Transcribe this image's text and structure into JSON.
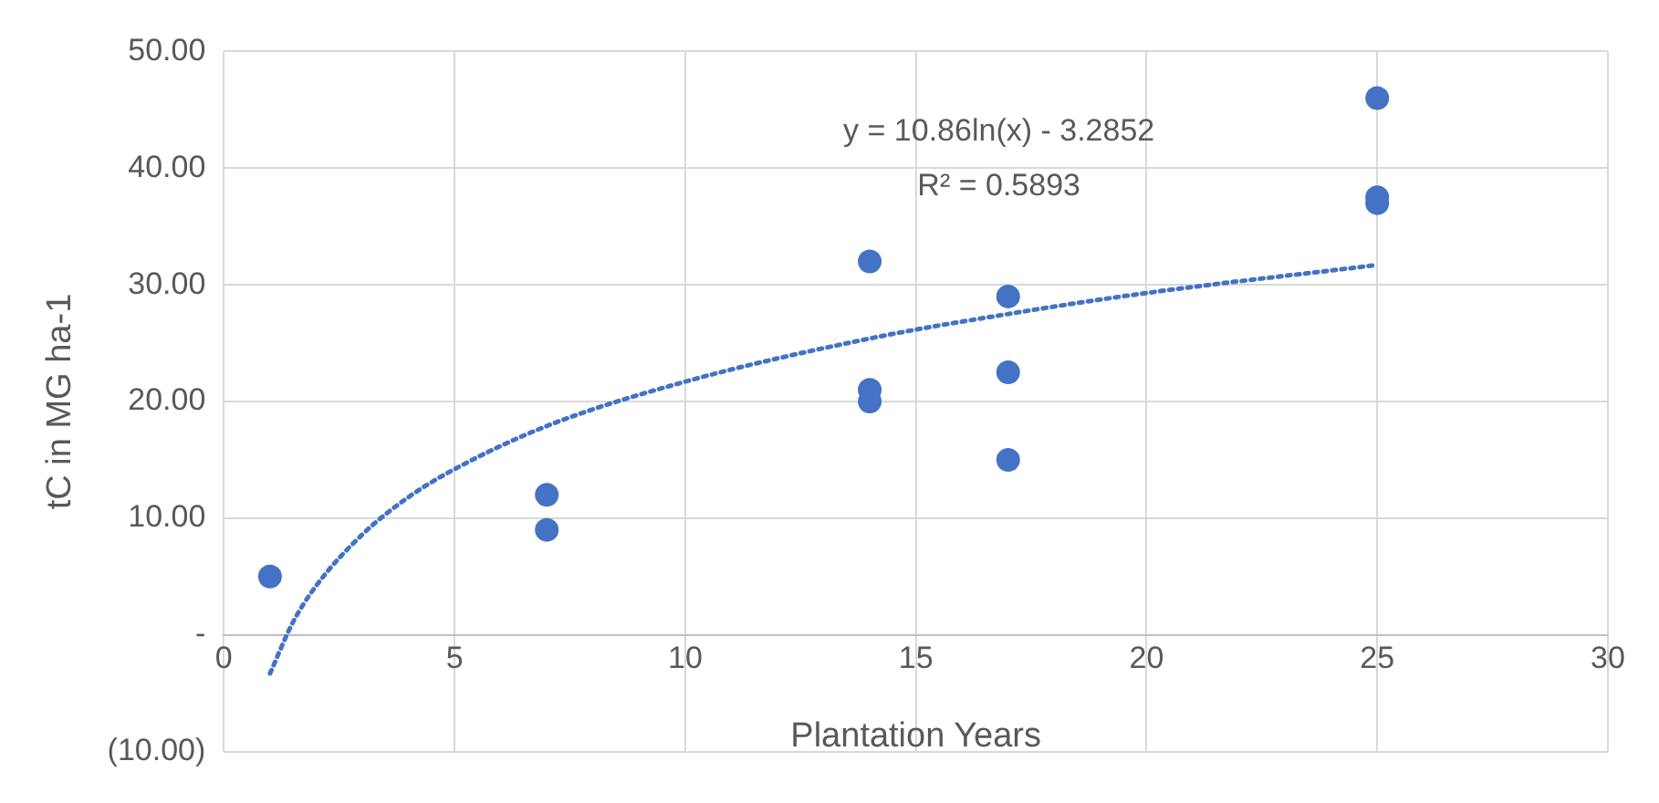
{
  "chart_data": {
    "type": "scatter",
    "xlabel": "Plantation Years",
    "ylabel": "tC in MG ha-1",
    "xlim": [
      0,
      30
    ],
    "xticks": [
      0,
      5,
      10,
      15,
      20,
      25,
      30
    ],
    "ylim": [
      -10,
      50
    ],
    "yticks": [
      {
        "value": -10,
        "label": "(10.00)"
      },
      {
        "value": 0,
        "label": "-"
      },
      {
        "value": 10,
        "label": "10.00"
      },
      {
        "value": 20,
        "label": "20.00"
      },
      {
        "value": 30,
        "label": "30.00"
      },
      {
        "value": 40,
        "label": "40.00"
      },
      {
        "value": 50,
        "label": "50.00"
      }
    ],
    "grid": true,
    "legend": false,
    "marker": "circle",
    "annotations": [
      "y = 10.86ln(x) - 3.2852",
      "R² = 0.5893"
    ],
    "series": [
      {
        "type": "scatter",
        "color": "#4472c4",
        "x": [
          1,
          7,
          7,
          14,
          14,
          14,
          17,
          17,
          17,
          25,
          25,
          25
        ],
        "values": [
          5,
          12,
          9,
          32,
          21,
          20,
          29,
          22.5,
          15,
          46,
          37.5,
          37
        ]
      },
      {
        "type": "line",
        "color": "#4472c4",
        "line_style": "dotted",
        "marker": "none",
        "x": [
          1,
          1.5,
          2,
          3,
          4,
          5,
          7,
          10,
          14,
          17,
          20,
          25
        ],
        "values": [
          -3.3,
          1.1,
          4.2,
          8.6,
          11.8,
          14.2,
          17.9,
          21.7,
          25.4,
          27.5,
          29.3,
          31.7
        ]
      }
    ]
  }
}
